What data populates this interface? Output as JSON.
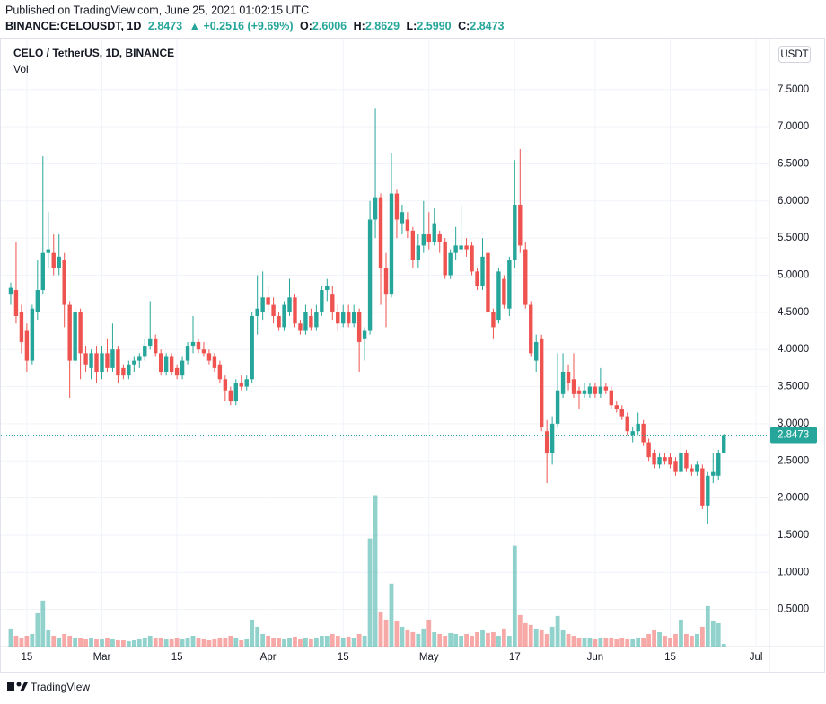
{
  "chart_data": {
    "type": "candlestick",
    "header": {
      "published": "Published on TradingView.com, June 25, 2021 01:02:15 UTC",
      "symbol": "BINANCE:CELOUSDT, 1D",
      "last": "2.8473",
      "change": "▲ +0.2516 (+9.69%)",
      "ohlc": [
        {
          "label": "O:",
          "value": "2.6006"
        },
        {
          "label": "H:",
          "value": "2.8629"
        },
        {
          "label": "L:",
          "value": "2.5990"
        },
        {
          "label": "C:",
          "value": "2.8473"
        }
      ]
    },
    "title": "CELO / TetherUS, 1D, BINANCE",
    "volume_label": "Vol",
    "currency": "USDT",
    "last_price": 2.8473,
    "footer": "TradingView",
    "up_color": "#26a69a",
    "down_color": "#ef5350",
    "grid": true,
    "categories": [
      "Feb 12",
      "Feb 13",
      "Feb 14",
      "Feb 15",
      "Feb 16",
      "Feb 17",
      "Feb 18",
      "Feb 19",
      "Feb 20",
      "Feb 21",
      "Feb 22",
      "Feb 23",
      "Feb 24",
      "Feb 25",
      "Feb 26",
      "Feb 27",
      "Feb 28",
      "Mar 1",
      "Mar 2",
      "Mar 3",
      "Mar 4",
      "Mar 5",
      "Mar 6",
      "Mar 7",
      "Mar 8",
      "Mar 9",
      "Mar 10",
      "Mar 11",
      "Mar 12",
      "Mar 13",
      "Mar 14",
      "Mar 15",
      "Mar 16",
      "Mar 17",
      "Mar 18",
      "Mar 19",
      "Mar 20",
      "Mar 21",
      "Mar 22",
      "Mar 23",
      "Mar 24",
      "Mar 25",
      "Mar 26",
      "Mar 27",
      "Mar 28",
      "Mar 29",
      "Mar 30",
      "Mar 31",
      "Apr 1",
      "Apr 2",
      "Apr 3",
      "Apr 4",
      "Apr 5",
      "Apr 6",
      "Apr 7",
      "Apr 8",
      "Apr 9",
      "Apr 10",
      "Apr 11",
      "Apr 12",
      "Apr 13",
      "Apr 14",
      "Apr 15",
      "Apr 16",
      "Apr 17",
      "Apr 18",
      "Apr 19",
      "Apr 20",
      "Apr 21",
      "Apr 22",
      "Apr 23",
      "Apr 24",
      "Apr 25",
      "Apr 26",
      "Apr 27",
      "Apr 28",
      "Apr 29",
      "Apr 30",
      "May 1",
      "May 2",
      "May 3",
      "May 4",
      "May 5",
      "May 6",
      "May 7",
      "May 8",
      "May 9",
      "May 10",
      "May 11",
      "May 12",
      "May 13",
      "May 14",
      "May 15",
      "May 16",
      "May 17",
      "May 18",
      "May 19",
      "May 20",
      "May 21",
      "May 22",
      "May 23",
      "May 24",
      "May 25",
      "May 26",
      "May 27",
      "May 28",
      "May 29",
      "May 30",
      "May 31",
      "Jun 1",
      "Jun 2",
      "Jun 3",
      "Jun 4",
      "Jun 5",
      "Jun 6",
      "Jun 7",
      "Jun 8",
      "Jun 9",
      "Jun 10",
      "Jun 11",
      "Jun 12",
      "Jun 13",
      "Jun 14",
      "Jun 15",
      "Jun 16",
      "Jun 17",
      "Jun 18",
      "Jun 19",
      "Jun 20",
      "Jun 21",
      "Jun 22",
      "Jun 23",
      "Jun 24",
      "Jun 25"
    ],
    "ohlc": [
      [
        4.75,
        4.9,
        4.6,
        4.83
      ],
      [
        4.8,
        5.45,
        4.35,
        4.45
      ],
      [
        4.5,
        4.6,
        3.95,
        4.1
      ],
      [
        4.25,
        4.35,
        3.7,
        3.85
      ],
      [
        3.85,
        4.6,
        3.8,
        4.55
      ],
      [
        4.5,
        5.2,
        4.4,
        4.8
      ],
      [
        4.8,
        6.6,
        4.75,
        5.3
      ],
      [
        5.3,
        5.85,
        5.1,
        5.35
      ],
      [
        5.3,
        5.55,
        5.0,
        5.1
      ],
      [
        5.1,
        5.55,
        5.0,
        5.25
      ],
      [
        5.2,
        5.3,
        4.3,
        4.6
      ],
      [
        4.6,
        4.65,
        3.35,
        3.85
      ],
      [
        3.85,
        4.55,
        3.8,
        4.5
      ],
      [
        4.5,
        4.55,
        3.6,
        3.95
      ],
      [
        3.95,
        4.05,
        3.7,
        3.8
      ],
      [
        3.75,
        4.0,
        3.6,
        3.95
      ],
      [
        3.95,
        4.05,
        3.55,
        3.7
      ],
      [
        3.7,
        4.05,
        3.6,
        3.95
      ],
      [
        3.95,
        4.15,
        3.7,
        3.75
      ],
      [
        3.75,
        4.35,
        3.7,
        4.0
      ],
      [
        4.0,
        4.05,
        3.55,
        3.65
      ],
      [
        3.75,
        3.8,
        3.6,
        3.65
      ],
      [
        3.65,
        3.85,
        3.6,
        3.8
      ],
      [
        3.8,
        3.9,
        3.7,
        3.85
      ],
      [
        3.85,
        3.95,
        3.75,
        3.9
      ],
      [
        3.9,
        4.15,
        3.85,
        4.05
      ],
      [
        4.05,
        4.65,
        4.0,
        4.15
      ],
      [
        4.15,
        4.2,
        3.9,
        3.95
      ],
      [
        3.95,
        4.0,
        3.65,
        3.7
      ],
      [
        3.7,
        3.95,
        3.65,
        3.9
      ],
      [
        3.9,
        3.95,
        3.65,
        3.7
      ],
      [
        3.75,
        3.8,
        3.6,
        3.65
      ],
      [
        3.65,
        3.9,
        3.6,
        3.85
      ],
      [
        3.85,
        4.1,
        3.8,
        4.05
      ],
      [
        4.05,
        4.45,
        3.95,
        4.1
      ],
      [
        4.1,
        4.15,
        3.95,
        4.0
      ],
      [
        4.0,
        4.1,
        3.9,
        3.95
      ],
      [
        3.95,
        4.0,
        3.8,
        3.85
      ],
      [
        3.9,
        3.95,
        3.7,
        3.75
      ],
      [
        3.8,
        3.85,
        3.55,
        3.6
      ],
      [
        3.6,
        3.65,
        3.3,
        3.45
      ],
      [
        3.45,
        3.5,
        3.25,
        3.3
      ],
      [
        3.3,
        3.6,
        3.25,
        3.55
      ],
      [
        3.55,
        3.65,
        3.45,
        3.5
      ],
      [
        3.5,
        3.65,
        3.45,
        3.6
      ],
      [
        3.6,
        4.5,
        3.55,
        4.45
      ],
      [
        4.45,
        5.0,
        4.2,
        4.55
      ],
      [
        4.5,
        5.05,
        4.4,
        4.7
      ],
      [
        4.7,
        4.85,
        4.5,
        4.6
      ],
      [
        4.6,
        4.7,
        4.35,
        4.45
      ],
      [
        4.45,
        4.5,
        4.25,
        4.3
      ],
      [
        4.3,
        4.65,
        4.25,
        4.6
      ],
      [
        4.5,
        4.95,
        4.45,
        4.7
      ],
      [
        4.7,
        4.75,
        4.3,
        4.35
      ],
      [
        4.35,
        4.4,
        4.2,
        4.25
      ],
      [
        4.25,
        4.6,
        4.2,
        4.5
      ],
      [
        4.45,
        4.55,
        4.25,
        4.3
      ],
      [
        4.3,
        4.6,
        4.25,
        4.5
      ],
      [
        4.5,
        4.85,
        4.45,
        4.8
      ],
      [
        4.8,
        4.95,
        4.65,
        4.85
      ],
      [
        4.75,
        4.85,
        4.4,
        4.5
      ],
      [
        4.5,
        4.6,
        4.25,
        4.35
      ],
      [
        4.35,
        4.6,
        4.3,
        4.5
      ],
      [
        4.5,
        4.6,
        4.3,
        4.35
      ],
      [
        4.35,
        4.6,
        4.3,
        4.5
      ],
      [
        4.5,
        4.55,
        3.7,
        4.1
      ],
      [
        4.15,
        4.3,
        3.85,
        4.25
      ],
      [
        4.25,
        6.0,
        4.2,
        5.75
      ],
      [
        5.75,
        7.25,
        5.5,
        6.05
      ],
      [
        6.05,
        6.1,
        4.6,
        5.1
      ],
      [
        5.1,
        5.3,
        4.3,
        4.75
      ],
      [
        4.75,
        6.65,
        4.7,
        6.1
      ],
      [
        6.1,
        6.15,
        5.5,
        5.75
      ],
      [
        5.7,
        5.95,
        5.55,
        5.85
      ],
      [
        5.75,
        5.85,
        5.5,
        5.6
      ],
      [
        5.6,
        5.65,
        5.1,
        5.2
      ],
      [
        5.2,
        5.55,
        5.1,
        5.4
      ],
      [
        5.4,
        6.0,
        5.3,
        5.55
      ],
      [
        5.55,
        5.85,
        5.35,
        5.45
      ],
      [
        5.45,
        5.9,
        5.4,
        5.7
      ],
      [
        5.55,
        5.6,
        5.3,
        5.45
      ],
      [
        5.45,
        5.5,
        4.95,
        5.0
      ],
      [
        5.0,
        5.35,
        4.95,
        5.3
      ],
      [
        5.3,
        5.65,
        5.2,
        5.4
      ],
      [
        5.35,
        5.95,
        5.3,
        5.4
      ],
      [
        5.4,
        5.5,
        5.25,
        5.35
      ],
      [
        5.4,
        5.45,
        5.0,
        5.05
      ],
      [
        5.05,
        5.1,
        4.8,
        4.85
      ],
      [
        4.85,
        5.5,
        4.8,
        5.25
      ],
      [
        5.3,
        5.35,
        4.45,
        4.5
      ],
      [
        4.5,
        4.55,
        4.15,
        4.3
      ],
      [
        4.4,
        5.1,
        4.35,
        5.05
      ],
      [
        4.95,
        5.0,
        4.55,
        4.6
      ],
      [
        4.55,
        5.25,
        4.45,
        5.2
      ],
      [
        5.2,
        6.55,
        5.1,
        5.95
      ],
      [
        5.95,
        6.7,
        5.3,
        5.4
      ],
      [
        5.35,
        5.45,
        4.55,
        4.6
      ],
      [
        4.6,
        4.65,
        3.9,
        3.95
      ],
      [
        3.85,
        4.2,
        3.7,
        4.1
      ],
      [
        4.15,
        4.2,
        2.9,
        2.95
      ],
      [
        2.9,
        3.05,
        2.2,
        2.6
      ],
      [
        2.6,
        3.1,
        2.45,
        3.0
      ],
      [
        3.0,
        3.95,
        2.95,
        3.45
      ],
      [
        3.4,
        3.95,
        3.35,
        3.7
      ],
      [
        3.7,
        3.8,
        3.45,
        3.55
      ],
      [
        3.6,
        3.95,
        3.35,
        3.4
      ],
      [
        3.45,
        3.5,
        3.2,
        3.4
      ],
      [
        3.4,
        3.55,
        3.35,
        3.45
      ],
      [
        3.4,
        3.55,
        3.35,
        3.5
      ],
      [
        3.5,
        3.55,
        3.35,
        3.4
      ],
      [
        3.4,
        3.75,
        3.35,
        3.5
      ],
      [
        3.5,
        3.55,
        3.4,
        3.45
      ],
      [
        3.45,
        3.5,
        3.2,
        3.25
      ],
      [
        3.25,
        3.3,
        3.15,
        3.2
      ],
      [
        3.2,
        3.25,
        3.05,
        3.1
      ],
      [
        3.1,
        3.15,
        2.85,
        2.9
      ],
      [
        2.85,
        2.95,
        2.75,
        2.9
      ],
      [
        2.9,
        3.15,
        2.85,
        3.0
      ],
      [
        3.0,
        3.05,
        2.7,
        2.75
      ],
      [
        2.75,
        2.8,
        2.5,
        2.55
      ],
      [
        2.6,
        2.65,
        2.4,
        2.45
      ],
      [
        2.45,
        2.6,
        2.4,
        2.55
      ],
      [
        2.55,
        2.6,
        2.45,
        2.5
      ],
      [
        2.55,
        2.6,
        2.4,
        2.45
      ],
      [
        2.5,
        2.55,
        2.3,
        2.35
      ],
      [
        2.35,
        2.9,
        2.3,
        2.6
      ],
      [
        2.6,
        2.65,
        2.35,
        2.4
      ],
      [
        2.4,
        2.45,
        2.3,
        2.35
      ],
      [
        2.35,
        2.5,
        2.3,
        2.45
      ],
      [
        2.4,
        2.45,
        1.85,
        1.9
      ],
      [
        1.9,
        2.35,
        1.65,
        2.3
      ],
      [
        2.3,
        2.6,
        2.2,
        2.35
      ],
      [
        2.3,
        2.65,
        2.25,
        2.6
      ],
      [
        2.6006,
        2.8629,
        2.599,
        2.8473
      ]
    ],
    "volume": [
      20,
      12,
      10,
      12,
      14,
      37,
      51,
      18,
      12,
      10,
      14,
      12,
      10,
      9,
      8,
      9,
      8,
      8,
      10,
      8,
      7,
      7,
      6,
      7,
      8,
      10,
      12,
      9,
      9,
      8,
      8,
      10,
      8,
      9,
      12,
      9,
      8,
      7,
      8,
      9,
      10,
      12,
      9,
      7,
      8,
      30,
      22,
      14,
      12,
      10,
      9,
      8,
      9,
      11,
      8,
      9,
      8,
      10,
      12,
      12,
      14,
      12,
      10,
      11,
      9,
      14,
      12,
      120,
      168,
      38,
      30,
      70,
      28,
      22,
      18,
      16,
      14,
      20,
      30,
      16,
      14,
      12,
      15,
      14,
      12,
      14,
      12,
      16,
      18,
      15,
      16,
      12,
      20,
      12,
      112,
      35,
      26,
      24,
      20,
      18,
      14,
      22,
      34,
      18,
      14,
      12,
      10,
      9,
      9,
      8,
      10,
      10,
      9,
      8,
      9,
      8,
      8,
      9,
      10,
      14,
      18,
      16,
      12,
      10,
      14,
      30,
      14,
      12,
      14,
      22,
      45,
      28,
      26,
      3
    ],
    "xlim": [
      "Feb 11",
      "Jul 3"
    ],
    "xticks": [
      {
        "value": "Feb 15",
        "label": "15"
      },
      {
        "value": "Mar 1",
        "label": "Mar"
      },
      {
        "value": "Mar 15",
        "label": "15"
      },
      {
        "value": "Apr 1",
        "label": "Apr"
      },
      {
        "value": "Apr 15",
        "label": "15"
      },
      {
        "value": "May 1",
        "label": "May"
      },
      {
        "value": "May 17",
        "label": "17"
      },
      {
        "value": "Jun 1",
        "label": "Jun"
      },
      {
        "value": "Jun 15",
        "label": "15"
      },
      {
        "value": "Jul 1",
        "label": "Jul"
      }
    ],
    "ylim": [
      0,
      8.15
    ],
    "yticks": [
      {
        "value": 0.5,
        "label": "0.5000"
      },
      {
        "value": 1,
        "label": "1.0000"
      },
      {
        "value": 1.5,
        "label": "1.5000"
      },
      {
        "value": 2,
        "label": "2.0000"
      },
      {
        "value": 2.5,
        "label": "2.5000"
      },
      {
        "value": 3,
        "label": "3.0000"
      },
      {
        "value": 3.5,
        "label": "3.5000"
      },
      {
        "value": 4,
        "label": "4.0000"
      },
      {
        "value": 4.5,
        "label": "4.5000"
      },
      {
        "value": 5,
        "label": "5.0000"
      },
      {
        "value": 5.5,
        "label": "5.5000"
      },
      {
        "value": 6,
        "label": "6.0000"
      },
      {
        "value": 6.5,
        "label": "6.5000"
      },
      {
        "value": 7,
        "label": "7.0000"
      },
      {
        "value": 7.5,
        "label": "7.5000"
      }
    ]
  }
}
